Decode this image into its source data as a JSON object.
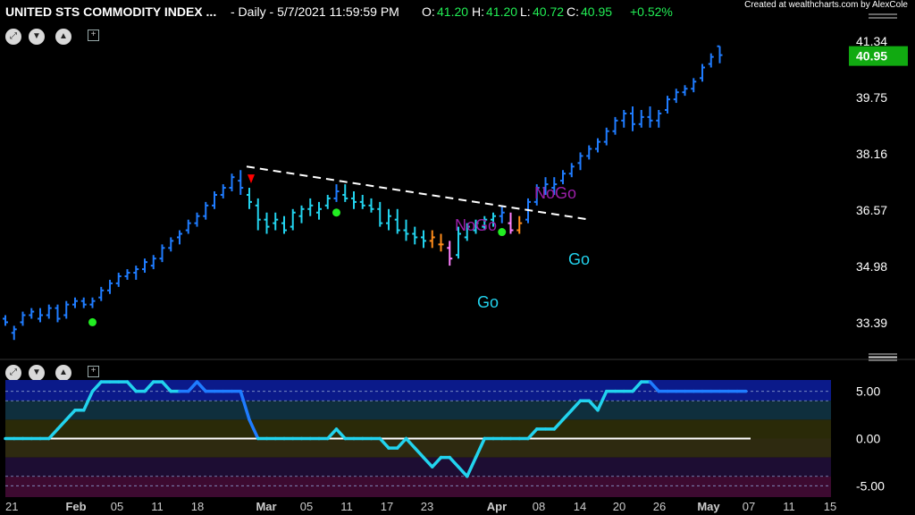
{
  "header": {
    "title": "UNITED STS COMMODITY INDEX ...",
    "interval": "- Daily - 5/7/2021 11:59:59 PM",
    "ohlc": [
      {
        "label": "O:",
        "value": "41.20"
      },
      {
        "label": "H:",
        "value": "41.20"
      },
      {
        "label": "L:",
        "value": "40.72"
      },
      {
        "label": "C:",
        "value": "40.95"
      }
    ],
    "change": "+0.52%",
    "credit": "Created at wealthcharts.com by AlexCole"
  },
  "colors": {
    "go_strong": "#1f7cff",
    "go_weak": "#22d3ee",
    "nogo_weak": "#ff8c1a",
    "nogo_strong": "#ff80ff",
    "label_go": "#22d3ee",
    "label_nogo": "#9b1fa8",
    "dot": "#22ee22",
    "triangle": "#ff0000",
    "price_tag": "#11aa11",
    "up": "#22ee55"
  },
  "icons": [
    "expand-icon",
    "chevron-down-icon",
    "chevron-up-icon",
    "add-panel-icon"
  ],
  "chart_data": [
    {
      "type": "ohlc-bar",
      "title": "UNITED STS COMMODITY INDEX ...",
      "last_price": "40.95",
      "yticks": [
        "41.34",
        "39.75",
        "38.16",
        "36.57",
        "34.98",
        "33.39"
      ],
      "ylim": [
        32.4,
        41.8
      ],
      "xticks": [
        "21",
        "Feb",
        "05",
        "11",
        "18",
        "Mar",
        "05",
        "11",
        "17",
        "23",
        "Apr",
        "08",
        "14",
        "20",
        "26",
        "May",
        "07",
        "11",
        "15"
      ],
      "annotations": [
        "NoGo",
        "NoGo",
        "Go",
        "Go"
      ],
      "trendline": {
        "from": [
          0.0,
          37.8
        ],
        "to": [
          1.0,
          36.3
        ]
      },
      "series": [
        {
          "values": [
            [
              33.5,
              33.6,
              33.3,
              33.4,
              "s"
            ],
            [
              33.1,
              33.3,
              32.9,
              33.2,
              "s"
            ],
            [
              33.4,
              33.7,
              33.3,
              33.6,
              "s"
            ],
            [
              33.6,
              33.8,
              33.5,
              33.7,
              "s"
            ],
            [
              33.5,
              33.8,
              33.4,
              33.6,
              "s"
            ],
            [
              33.6,
              33.9,
              33.5,
              33.8,
              "s"
            ],
            [
              33.8,
              33.9,
              33.4,
              33.5,
              "s"
            ],
            [
              33.6,
              34.0,
              33.5,
              33.9,
              "s"
            ],
            [
              33.9,
              34.1,
              33.8,
              34.0,
              "s"
            ],
            [
              34.0,
              34.1,
              33.8,
              33.9,
              "s"
            ],
            [
              33.9,
              34.1,
              33.8,
              34.0,
              "s"
            ],
            [
              34.1,
              34.4,
              34.0,
              34.3,
              "s"
            ],
            [
              34.3,
              34.6,
              34.2,
              34.5,
              "s"
            ],
            [
              34.5,
              34.8,
              34.4,
              34.7,
              "s"
            ],
            [
              34.7,
              34.9,
              34.6,
              34.8,
              "s"
            ],
            [
              34.8,
              35.0,
              34.6,
              34.9,
              "s"
            ],
            [
              34.9,
              35.2,
              34.8,
              35.1,
              "s"
            ],
            [
              35.0,
              35.3,
              34.9,
              35.2,
              "s"
            ],
            [
              35.2,
              35.6,
              35.1,
              35.5,
              "s"
            ],
            [
              35.5,
              35.8,
              35.4,
              35.7,
              "s"
            ],
            [
              35.8,
              36.0,
              35.6,
              35.9,
              "s"
            ],
            [
              36.0,
              36.3,
              35.9,
              36.2,
              "s"
            ],
            [
              36.2,
              36.5,
              36.1,
              36.4,
              "s"
            ],
            [
              36.4,
              36.8,
              36.3,
              36.7,
              "s"
            ],
            [
              36.7,
              37.1,
              36.6,
              37.0,
              "s"
            ],
            [
              37.0,
              37.3,
              36.9,
              37.2,
              "s"
            ],
            [
              37.2,
              37.6,
              37.1,
              37.5,
              "s"
            ],
            [
              37.4,
              37.7,
              37.0,
              37.2,
              "s"
            ],
            [
              37.0,
              37.2,
              36.6,
              36.8,
              "w"
            ],
            [
              36.7,
              36.9,
              36.0,
              36.3,
              "w"
            ],
            [
              36.3,
              36.5,
              35.9,
              36.1,
              "w"
            ],
            [
              36.2,
              36.5,
              36.0,
              36.3,
              "w"
            ],
            [
              36.2,
              36.4,
              35.9,
              36.0,
              "w"
            ],
            [
              36.1,
              36.6,
              36.0,
              36.5,
              "w"
            ],
            [
              36.4,
              36.7,
              36.2,
              36.6,
              "w"
            ],
            [
              36.6,
              36.9,
              36.4,
              36.7,
              "w"
            ],
            [
              36.5,
              36.8,
              36.3,
              36.6,
              "w"
            ],
            [
              36.7,
              37.0,
              36.6,
              36.9,
              "w"
            ],
            [
              36.9,
              37.3,
              36.8,
              37.1,
              "s"
            ],
            [
              37.0,
              37.3,
              36.8,
              36.9,
              "w"
            ],
            [
              36.9,
              37.1,
              36.6,
              36.8,
              "w"
            ],
            [
              36.8,
              37.0,
              36.6,
              36.7,
              "w"
            ],
            [
              36.7,
              36.9,
              36.5,
              36.6,
              "w"
            ],
            [
              36.6,
              36.8,
              36.1,
              36.2,
              "w"
            ],
            [
              36.2,
              36.6,
              36.0,
              36.4,
              "w"
            ],
            [
              36.3,
              36.6,
              35.9,
              36.0,
              "w"
            ],
            [
              36.0,
              36.3,
              35.7,
              35.9,
              "w"
            ],
            [
              35.9,
              36.1,
              35.6,
              35.8,
              "w"
            ],
            [
              35.8,
              36.0,
              35.5,
              35.7,
              "w"
            ],
            [
              35.7,
              36.0,
              35.5,
              35.8,
              "o"
            ],
            [
              35.6,
              35.9,
              35.4,
              35.6,
              "o"
            ],
            [
              35.5,
              35.7,
              35.0,
              35.2,
              "p"
            ],
            [
              35.3,
              36.1,
              35.2,
              35.9,
              "w"
            ],
            [
              35.8,
              36.2,
              35.7,
              36.1,
              "w"
            ],
            [
              36.0,
              36.3,
              35.9,
              36.2,
              "w"
            ],
            [
              36.1,
              36.4,
              36.0,
              36.3,
              "w"
            ],
            [
              36.3,
              36.5,
              36.1,
              36.4,
              "w"
            ],
            [
              36.4,
              36.7,
              36.2,
              36.5,
              "s"
            ],
            [
              36.2,
              36.5,
              35.9,
              36.0,
              "p"
            ],
            [
              36.0,
              36.4,
              35.9,
              36.2,
              "o"
            ],
            [
              36.3,
              36.9,
              36.2,
              36.8,
              "s"
            ],
            [
              36.8,
              37.3,
              36.7,
              37.2,
              "s"
            ],
            [
              37.2,
              37.5,
              37.0,
              37.3,
              "s"
            ],
            [
              37.2,
              37.5,
              37.0,
              37.3,
              "s"
            ],
            [
              37.4,
              37.7,
              37.3,
              37.6,
              "s"
            ],
            [
              37.6,
              37.9,
              37.5,
              37.8,
              "s"
            ],
            [
              37.9,
              38.2,
              37.7,
              38.1,
              "s"
            ],
            [
              38.1,
              38.4,
              38.0,
              38.3,
              "s"
            ],
            [
              38.3,
              38.6,
              38.2,
              38.5,
              "s"
            ],
            [
              38.5,
              38.9,
              38.4,
              38.8,
              "s"
            ],
            [
              38.8,
              39.2,
              38.7,
              39.1,
              "s"
            ],
            [
              39.1,
              39.4,
              38.9,
              39.3,
              "s"
            ],
            [
              39.3,
              39.5,
              38.8,
              39.0,
              "s"
            ],
            [
              39.0,
              39.4,
              38.9,
              39.2,
              "s"
            ],
            [
              39.2,
              39.5,
              38.9,
              39.1,
              "s"
            ],
            [
              39.1,
              39.4,
              38.9,
              39.3,
              "s"
            ],
            [
              39.4,
              39.8,
              39.3,
              39.7,
              "s"
            ],
            [
              39.7,
              40.0,
              39.6,
              39.9,
              "s"
            ],
            [
              39.9,
              40.1,
              39.8,
              40.0,
              "s"
            ],
            [
              40.0,
              40.3,
              39.9,
              40.2,
              "s"
            ],
            [
              40.3,
              40.7,
              40.2,
              40.6,
              "s"
            ],
            [
              40.7,
              41.0,
              40.6,
              40.9,
              "s"
            ],
            [
              41.2,
              41.2,
              40.72,
              40.95,
              "s"
            ]
          ]
        }
      ],
      "go_dots": [
        [
          10,
          33.4
        ],
        [
          38,
          36.5
        ],
        [
          57,
          35.95
        ]
      ],
      "nogo_triangle": [
        28,
        37.45
      ]
    },
    {
      "type": "line",
      "yticks": [
        "5.00",
        "0.00",
        "-5.00"
      ],
      "ylim": [
        -6.2,
        6.2
      ],
      "series": [
        {
          "values": [
            0,
            0,
            0,
            0,
            0,
            0,
            1,
            2,
            3,
            3,
            5,
            6,
            6,
            6,
            6,
            5,
            5,
            6,
            6,
            5,
            5,
            5,
            6,
            5,
            5,
            5,
            5,
            5,
            2,
            0,
            0,
            0,
            0,
            0,
            0,
            0,
            0,
            0,
            1,
            0,
            0,
            0,
            0,
            0,
            -1,
            -1,
            0,
            -1,
            -2,
            -3,
            -2,
            -2,
            -3,
            -4,
            -2,
            0,
            0,
            0,
            0,
            0,
            0,
            1,
            1,
            1,
            2,
            3,
            4,
            4,
            3,
            5,
            5,
            5,
            5,
            6,
            6,
            5,
            5,
            5,
            5,
            5,
            5,
            5,
            5,
            5,
            5,
            5
          ]
        }
      ]
    }
  ]
}
